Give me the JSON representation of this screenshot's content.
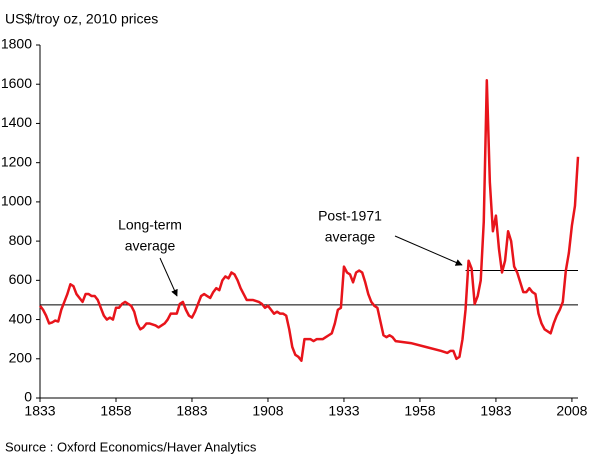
{
  "chart_data": {
    "type": "line",
    "y_axis_label": "US$/troy oz, 2010 prices",
    "source": "Source : Oxford Economics/Haver Analytics",
    "xlim": [
      1833,
      2010
    ],
    "xticks": [
      1833,
      1858,
      1883,
      1908,
      1933,
      1958,
      1983,
      2008
    ],
    "ylim": [
      0,
      1800
    ],
    "yticks": [
      0,
      200,
      400,
      600,
      800,
      1000,
      1200,
      1400,
      1600,
      1800
    ],
    "x": [
      1833,
      1834,
      1835,
      1836,
      1837,
      1838,
      1839,
      1840,
      1841,
      1842,
      1843,
      1844,
      1845,
      1846,
      1847,
      1848,
      1849,
      1850,
      1851,
      1852,
      1853,
      1854,
      1855,
      1856,
      1857,
      1858,
      1859,
      1860,
      1861,
      1862,
      1863,
      1864,
      1865,
      1866,
      1867,
      1868,
      1869,
      1870,
      1871,
      1872,
      1873,
      1874,
      1875,
      1876,
      1877,
      1878,
      1879,
      1880,
      1881,
      1882,
      1883,
      1884,
      1885,
      1886,
      1887,
      1888,
      1889,
      1890,
      1891,
      1892,
      1893,
      1894,
      1895,
      1896,
      1897,
      1898,
      1899,
      1900,
      1901,
      1902,
      1903,
      1904,
      1905,
      1906,
      1907,
      1908,
      1909,
      1910,
      1911,
      1912,
      1913,
      1914,
      1915,
      1916,
      1917,
      1918,
      1919,
      1920,
      1921,
      1922,
      1923,
      1924,
      1925,
      1926,
      1927,
      1928,
      1929,
      1930,
      1931,
      1932,
      1933,
      1934,
      1935,
      1936,
      1937,
      1938,
      1939,
      1940,
      1941,
      1942,
      1943,
      1944,
      1945,
      1946,
      1947,
      1948,
      1949,
      1950,
      1955,
      1960,
      1965,
      1967,
      1968,
      1969,
      1970,
      1971,
      1972,
      1973,
      1974,
      1975,
      1976,
      1977,
      1978,
      1979,
      1980,
      1981,
      1982,
      1983,
      1984,
      1985,
      1986,
      1987,
      1988,
      1989,
      1990,
      1991,
      1992,
      1993,
      1994,
      1995,
      1996,
      1997,
      1998,
      1999,
      2000,
      2001,
      2002,
      2003,
      2004,
      2005,
      2006,
      2007,
      2008,
      2009,
      2010
    ],
    "series": [
      {
        "color": "#e8141b",
        "values": [
          470,
          450,
          420,
          380,
          385,
          395,
          390,
          450,
          490,
          530,
          580,
          570,
          530,
          510,
          490,
          530,
          530,
          520,
          520,
          500,
          460,
          420,
          400,
          410,
          400,
          460,
          460,
          480,
          490,
          480,
          470,
          440,
          380,
          350,
          360,
          380,
          380,
          375,
          370,
          360,
          370,
          380,
          400,
          430,
          430,
          430,
          480,
          490,
          450,
          420,
          410,
          440,
          480,
          520,
          530,
          520,
          510,
          540,
          560,
          550,
          600,
          620,
          610,
          640,
          630,
          600,
          560,
          530,
          500,
          500,
          500,
          495,
          490,
          480,
          460,
          470,
          450,
          430,
          440,
          430,
          430,
          420,
          350,
          260,
          220,
          210,
          190,
          300,
          300,
          300,
          290,
          300,
          300,
          300,
          310,
          320,
          330,
          380,
          450,
          460,
          670,
          640,
          630,
          590,
          640,
          650,
          640,
          590,
          530,
          490,
          470,
          460,
          390,
          320,
          310,
          320,
          310,
          290,
          280,
          260,
          240,
          230,
          240,
          240,
          200,
          210,
          300,
          450,
          700,
          660,
          480,
          520,
          600,
          900,
          1620,
          1100,
          850,
          930,
          760,
          640,
          700,
          850,
          800,
          670,
          640,
          590,
          540,
          540,
          560,
          540,
          530,
          430,
          380,
          350,
          340,
          330,
          380,
          420,
          450,
          490,
          650,
          740,
          880,
          980,
          1230
        ]
      }
    ],
    "reference_lines": [
      {
        "value": 475,
        "from": 1833
      },
      {
        "value": 650,
        "from": 1973
      }
    ],
    "annotations": [
      {
        "text": [
          "Long-term",
          "average"
        ]
      },
      {
        "text": [
          "Post-1971",
          "average"
        ]
      }
    ]
  }
}
